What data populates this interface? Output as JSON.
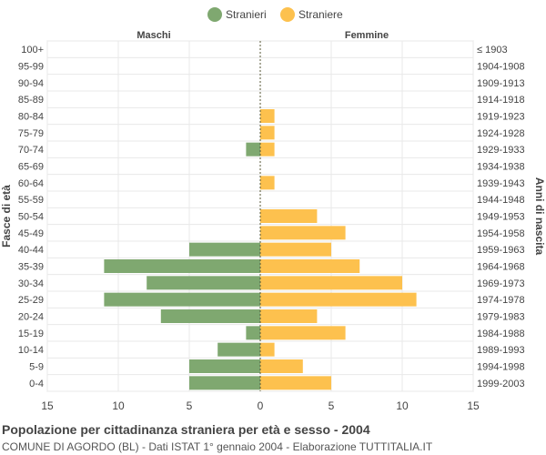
{
  "chart_data": {
    "type": "bar",
    "orientation": "horizontal-pyramid",
    "title": "Popolazione per cittadinanza straniera per età e sesso - 2004",
    "subtitle": "COMUNE DI AGORDO (BL) - Dati ISTAT 1° gennaio 2004 - Elaborazione TUTTITALIA.IT",
    "left_header": "Maschi",
    "right_header": "Femmine",
    "ylabel_left": "Fasce di età",
    "ylabel_right": "Anni di nascita",
    "xlim": [
      -15,
      15
    ],
    "x_ticks": [
      "15",
      "10",
      "5",
      "0",
      "5",
      "10",
      "15"
    ],
    "legend_position": "top-center",
    "categories": [
      "100+",
      "95-99",
      "90-94",
      "85-89",
      "80-84",
      "75-79",
      "70-74",
      "65-69",
      "60-64",
      "55-59",
      "50-54",
      "45-49",
      "40-44",
      "35-39",
      "30-34",
      "25-29",
      "20-24",
      "15-19",
      "10-14",
      "5-9",
      "0-4"
    ],
    "birth_years": [
      "≤ 1903",
      "1904-1908",
      "1909-1913",
      "1914-1918",
      "1919-1923",
      "1924-1928",
      "1929-1933",
      "1934-1938",
      "1939-1943",
      "1944-1948",
      "1949-1953",
      "1954-1958",
      "1959-1963",
      "1964-1968",
      "1969-1973",
      "1974-1978",
      "1979-1983",
      "1984-1988",
      "1989-1993",
      "1994-1998",
      "1999-2003"
    ],
    "series": [
      {
        "name": "Stranieri",
        "color": "#7fa870",
        "side": "left",
        "values": [
          0,
          0,
          0,
          0,
          0,
          0,
          1,
          0,
          0,
          0,
          0,
          0,
          5,
          11,
          8,
          11,
          7,
          1,
          3,
          5,
          5
        ]
      },
      {
        "name": "Straniere",
        "color": "#fdc14e",
        "side": "right",
        "values": [
          0,
          0,
          0,
          0,
          1,
          1,
          1,
          0,
          1,
          0,
          4,
          6,
          5,
          7,
          10,
          11,
          4,
          6,
          1,
          3,
          5
        ]
      }
    ],
    "grid": true
  }
}
